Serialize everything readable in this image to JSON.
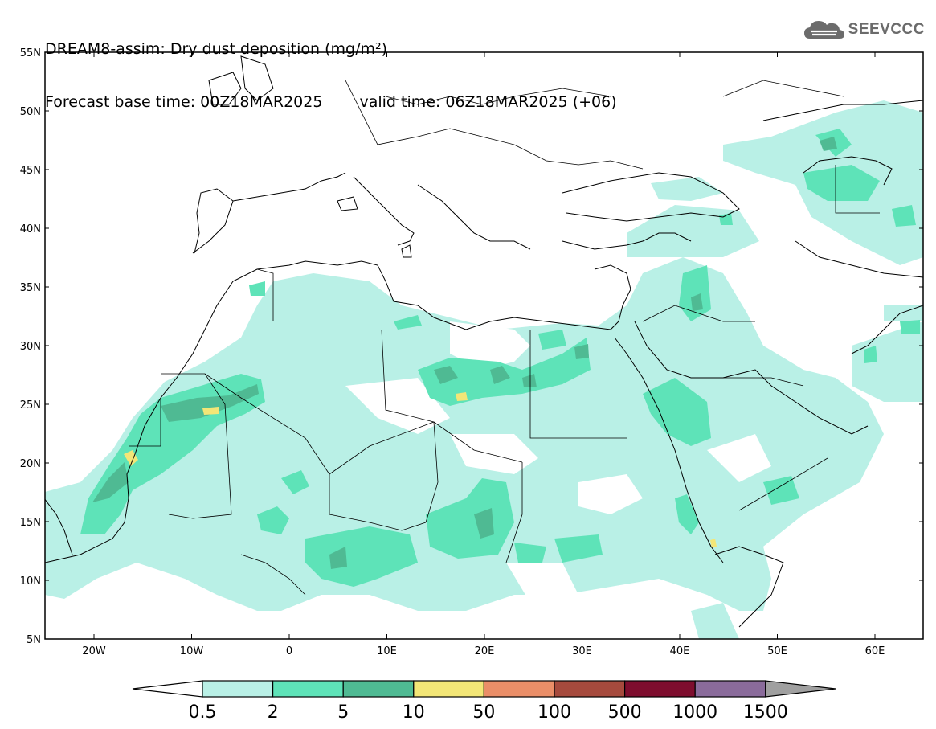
{
  "header": {
    "title": "DREAM8-assim: Dry dust deposition (mg/m²)",
    "forecast_base": "Forecast base time: 00Z18MAR2025",
    "valid_time": "valid time: 06Z18MAR2025 (+06)"
  },
  "logo": {
    "text": "SEEVCCC",
    "icon": "cloud-icon"
  },
  "map": {
    "lat_labels": [
      "55N",
      "50N",
      "45N",
      "40N",
      "35N",
      "30N",
      "25N",
      "20N",
      "15N",
      "10N",
      "5N"
    ],
    "lon_labels": [
      "20W",
      "10W",
      "0",
      "10E",
      "20E",
      "30E",
      "40E",
      "50E",
      "60E"
    ]
  },
  "legend": {
    "labels": [
      "0.5",
      "2",
      "5",
      "10",
      "50",
      "100",
      "500",
      "1000",
      "1500"
    ],
    "colors": [
      "#b9f0e6",
      "#5ee3b8",
      "#4fba93",
      "#f3e677",
      "#ea8e68",
      "#a64a3d",
      "#7e0d2e",
      "#8a6b9b",
      "#a0a0a0"
    ]
  }
}
